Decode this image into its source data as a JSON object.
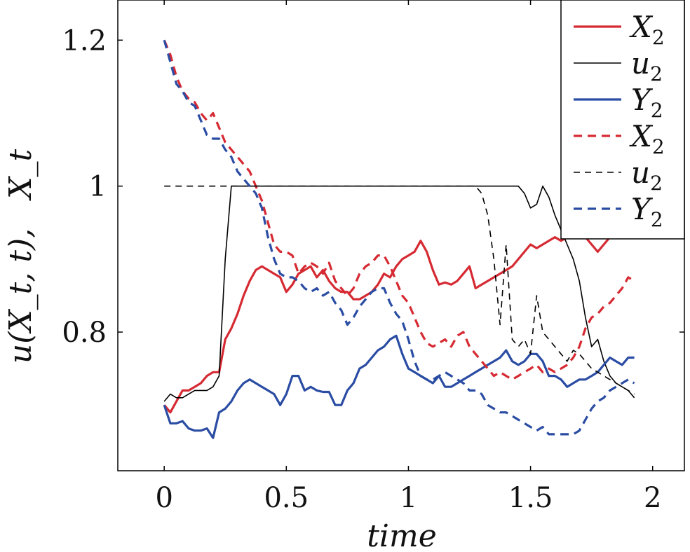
{
  "chart_data": {
    "type": "line",
    "xlabel": "time",
    "ylabel": "u(X_t, t),   X_t",
    "xlim": [
      -0.19,
      2.13
    ],
    "ylim": [
      0.61,
      1.255
    ],
    "xticks": [
      0,
      0.5,
      1,
      1.5,
      2
    ],
    "xtick_labels": [
      "0",
      "0.5",
      "1",
      "1.5",
      "2"
    ],
    "yticks": [
      0.8,
      1,
      1.2
    ],
    "ytick_labels": [
      "0.8",
      "1",
      "1.2"
    ],
    "grid": false,
    "legend_position": "top-right",
    "series": [
      {
        "name": "X_2",
        "color": "#d62a33",
        "dash": "solid",
        "width": 3.2,
        "x": [
          0,
          0.025,
          0.05,
          0.075,
          0.1,
          0.125,
          0.15,
          0.175,
          0.2,
          0.225,
          0.25,
          0.275,
          0.3,
          0.325,
          0.35,
          0.375,
          0.4,
          0.425,
          0.45,
          0.475,
          0.5,
          0.525,
          0.55,
          0.575,
          0.6,
          0.625,
          0.65,
          0.675,
          0.7,
          0.725,
          0.75,
          0.775,
          0.8,
          0.825,
          0.85,
          0.875,
          0.9,
          0.925,
          0.95,
          0.975,
          1.0,
          1.025,
          1.05,
          1.075,
          1.1,
          1.125,
          1.15,
          1.175,
          1.2,
          1.225,
          1.25,
          1.275,
          1.3,
          1.325,
          1.35,
          1.375,
          1.4,
          1.425,
          1.45,
          1.475,
          1.5,
          1.525,
          1.55,
          1.575,
          1.6,
          1.625,
          1.65,
          1.675,
          1.7,
          1.725,
          1.75,
          1.775,
          1.8,
          1.825,
          1.85,
          1.875,
          1.9,
          1.925
        ],
        "y": [
          0.7,
          0.69,
          0.705,
          0.72,
          0.72,
          0.725,
          0.73,
          0.74,
          0.745,
          0.745,
          0.79,
          0.805,
          0.825,
          0.85,
          0.87,
          0.885,
          0.89,
          0.885,
          0.88,
          0.875,
          0.855,
          0.865,
          0.88,
          0.885,
          0.89,
          0.875,
          0.885,
          0.87,
          0.86,
          0.855,
          0.855,
          0.845,
          0.845,
          0.85,
          0.855,
          0.865,
          0.88,
          0.875,
          0.89,
          0.9,
          0.905,
          0.91,
          0.925,
          0.91,
          0.885,
          0.865,
          0.868,
          0.865,
          0.87,
          0.88,
          0.89,
          0.86,
          0.865,
          0.87,
          0.875,
          0.88,
          0.885,
          0.89,
          0.9,
          0.91,
          0.92,
          0.915,
          0.92,
          0.925,
          0.93,
          0.925,
          0.93,
          0.935,
          0.94,
          0.93,
          0.92,
          0.91,
          0.92,
          0.93,
          0.935,
          0.935,
          0.93,
          0.935
        ]
      },
      {
        "name": "u_2",
        "color": "#000000",
        "dash": "solid",
        "width": 1.6,
        "x": [
          0,
          0.025,
          0.05,
          0.075,
          0.1,
          0.125,
          0.15,
          0.175,
          0.2,
          0.225,
          0.25,
          0.275,
          0.3,
          0.35,
          0.4,
          0.5,
          0.6,
          0.7,
          0.8,
          0.9,
          1.0,
          1.1,
          1.2,
          1.3,
          1.4,
          1.45,
          1.475,
          1.5,
          1.525,
          1.55,
          1.575,
          1.6,
          1.625,
          1.65,
          1.675,
          1.7,
          1.725,
          1.75,
          1.775,
          1.8,
          1.825,
          1.85,
          1.875,
          1.9,
          1.925
        ],
        "y": [
          0.705,
          0.715,
          0.71,
          0.71,
          0.715,
          0.72,
          0.72,
          0.72,
          0.725,
          0.74,
          0.9,
          1.0,
          1.0,
          1.0,
          1.0,
          1.0,
          1.0,
          1.0,
          1.0,
          1.0,
          1.0,
          1.0,
          1.0,
          1.0,
          1.0,
          1.0,
          0.99,
          0.97,
          0.975,
          1.0,
          0.985,
          0.96,
          0.94,
          0.92,
          0.9,
          0.87,
          0.82,
          0.78,
          0.79,
          0.76,
          0.74,
          0.73,
          0.725,
          0.72,
          0.71
        ]
      },
      {
        "name": "Y_2",
        "color": "#2a4ca3",
        "dash": "solid",
        "width": 3.2,
        "x": [
          0,
          0.025,
          0.05,
          0.075,
          0.1,
          0.125,
          0.15,
          0.175,
          0.2,
          0.225,
          0.25,
          0.275,
          0.3,
          0.325,
          0.35,
          0.375,
          0.4,
          0.425,
          0.45,
          0.475,
          0.5,
          0.525,
          0.55,
          0.575,
          0.6,
          0.625,
          0.65,
          0.675,
          0.7,
          0.725,
          0.75,
          0.775,
          0.8,
          0.825,
          0.85,
          0.875,
          0.9,
          0.925,
          0.95,
          0.975,
          1.0,
          1.025,
          1.05,
          1.075,
          1.1,
          1.125,
          1.15,
          1.175,
          1.2,
          1.225,
          1.25,
          1.275,
          1.3,
          1.325,
          1.35,
          1.375,
          1.4,
          1.425,
          1.45,
          1.475,
          1.5,
          1.525,
          1.55,
          1.575,
          1.6,
          1.625,
          1.65,
          1.675,
          1.7,
          1.725,
          1.75,
          1.775,
          1.8,
          1.825,
          1.85,
          1.875,
          1.9,
          1.925
        ],
        "y": [
          0.7,
          0.675,
          0.675,
          0.678,
          0.668,
          0.665,
          0.665,
          0.668,
          0.655,
          0.69,
          0.695,
          0.705,
          0.72,
          0.73,
          0.735,
          0.73,
          0.725,
          0.72,
          0.715,
          0.7,
          0.715,
          0.74,
          0.74,
          0.72,
          0.725,
          0.72,
          0.718,
          0.718,
          0.7,
          0.7,
          0.72,
          0.73,
          0.75,
          0.755,
          0.765,
          0.775,
          0.78,
          0.79,
          0.795,
          0.77,
          0.75,
          0.745,
          0.74,
          0.735,
          0.73,
          0.74,
          0.725,
          0.725,
          0.73,
          0.735,
          0.74,
          0.745,
          0.75,
          0.755,
          0.76,
          0.765,
          0.775,
          0.76,
          0.755,
          0.76,
          0.77,
          0.77,
          0.76,
          0.74,
          0.74,
          0.735,
          0.725,
          0.73,
          0.735,
          0.735,
          0.74,
          0.745,
          0.755,
          0.765,
          0.76,
          0.755,
          0.765,
          0.765
        ]
      },
      {
        "name": "X_2",
        "color": "#d62a33",
        "dash": "dashed",
        "width": 3.2,
        "x": [
          0,
          0.025,
          0.05,
          0.075,
          0.1,
          0.125,
          0.15,
          0.175,
          0.2,
          0.225,
          0.25,
          0.275,
          0.3,
          0.325,
          0.35,
          0.375,
          0.4,
          0.425,
          0.45,
          0.475,
          0.5,
          0.525,
          0.55,
          0.575,
          0.6,
          0.625,
          0.65,
          0.675,
          0.7,
          0.725,
          0.75,
          0.775,
          0.8,
          0.825,
          0.85,
          0.875,
          0.9,
          0.925,
          0.95,
          0.975,
          1.0,
          1.025,
          1.05,
          1.075,
          1.1,
          1.125,
          1.15,
          1.175,
          1.2,
          1.225,
          1.25,
          1.275,
          1.3,
          1.325,
          1.35,
          1.375,
          1.4,
          1.425,
          1.45,
          1.475,
          1.5,
          1.525,
          1.55,
          1.575,
          1.6,
          1.625,
          1.65,
          1.675,
          1.7,
          1.725,
          1.75,
          1.775,
          1.8,
          1.825,
          1.85,
          1.875,
          1.9,
          1.925
        ],
        "y": [
          1.2,
          1.18,
          1.15,
          1.13,
          1.12,
          1.115,
          1.1,
          1.09,
          1.1,
          1.08,
          1.06,
          1.05,
          1.04,
          1.03,
          1.02,
          1.0,
          0.98,
          0.95,
          0.92,
          0.91,
          0.91,
          0.905,
          0.88,
          0.89,
          0.895,
          0.89,
          0.88,
          0.895,
          0.87,
          0.86,
          0.85,
          0.86,
          0.88,
          0.89,
          0.895,
          0.905,
          0.905,
          0.89,
          0.87,
          0.85,
          0.84,
          0.82,
          0.8,
          0.785,
          0.78,
          0.785,
          0.79,
          0.78,
          0.795,
          0.8,
          0.78,
          0.77,
          0.76,
          0.75,
          0.74,
          0.745,
          0.74,
          0.735,
          0.74,
          0.745,
          0.75,
          0.755,
          0.745,
          0.75,
          0.745,
          0.75,
          0.755,
          0.765,
          0.78,
          0.805,
          0.82,
          0.825,
          0.835,
          0.84,
          0.85,
          0.86,
          0.875,
          0.87
        ]
      },
      {
        "name": "u_2",
        "color": "#000000",
        "dash": "dashed",
        "width": 1.6,
        "x": [
          0,
          0.1,
          0.2,
          0.3,
          0.4,
          0.5,
          0.6,
          0.7,
          0.8,
          0.9,
          1.0,
          1.1,
          1.2,
          1.275,
          1.3,
          1.325,
          1.35,
          1.375,
          1.4,
          1.425,
          1.45,
          1.475,
          1.5,
          1.525,
          1.55,
          1.575,
          1.6,
          1.625,
          1.65,
          1.675,
          1.7,
          1.725,
          1.75,
          1.775,
          1.8,
          1.825,
          1.85,
          1.875,
          1.9,
          1.925
        ],
        "y": [
          1.0,
          1.0,
          1.0,
          1.0,
          1.0,
          1.0,
          1.0,
          1.0,
          1.0,
          1.0,
          1.0,
          1.0,
          1.0,
          1.0,
          0.99,
          0.96,
          0.9,
          0.81,
          0.92,
          0.79,
          0.78,
          0.79,
          0.77,
          0.85,
          0.8,
          0.79,
          0.78,
          0.77,
          0.76,
          0.775,
          0.77,
          0.76,
          0.75,
          0.745,
          0.74,
          0.735,
          0.73,
          0.725,
          0.72,
          0.715
        ]
      },
      {
        "name": "Y_2",
        "color": "#2a4ca3",
        "dash": "dashed",
        "width": 3.2,
        "x": [
          0,
          0.025,
          0.05,
          0.075,
          0.1,
          0.125,
          0.15,
          0.175,
          0.2,
          0.225,
          0.25,
          0.275,
          0.3,
          0.325,
          0.35,
          0.375,
          0.4,
          0.425,
          0.45,
          0.475,
          0.5,
          0.525,
          0.55,
          0.575,
          0.6,
          0.625,
          0.65,
          0.675,
          0.7,
          0.725,
          0.75,
          0.775,
          0.8,
          0.825,
          0.85,
          0.875,
          0.9,
          0.925,
          0.95,
          0.975,
          1.0,
          1.025,
          1.05,
          1.075,
          1.1,
          1.125,
          1.15,
          1.175,
          1.2,
          1.225,
          1.25,
          1.275,
          1.3,
          1.325,
          1.35,
          1.375,
          1.4,
          1.425,
          1.45,
          1.475,
          1.5,
          1.525,
          1.55,
          1.575,
          1.6,
          1.625,
          1.65,
          1.675,
          1.7,
          1.725,
          1.75,
          1.775,
          1.8,
          1.825,
          1.85,
          1.875,
          1.9,
          1.925
        ],
        "y": [
          1.2,
          1.17,
          1.14,
          1.13,
          1.115,
          1.11,
          1.09,
          1.07,
          1.065,
          1.065,
          1.05,
          1.04,
          1.02,
          1.01,
          1.0,
          0.99,
          0.97,
          0.93,
          0.9,
          0.88,
          0.875,
          0.875,
          0.87,
          0.86,
          0.855,
          0.86,
          0.85,
          0.855,
          0.84,
          0.83,
          0.81,
          0.82,
          0.835,
          0.845,
          0.855,
          0.86,
          0.86,
          0.84,
          0.825,
          0.815,
          0.79,
          0.76,
          0.74,
          0.735,
          0.735,
          0.74,
          0.745,
          0.74,
          0.735,
          0.73,
          0.72,
          0.72,
          0.715,
          0.7,
          0.695,
          0.69,
          0.69,
          0.685,
          0.68,
          0.675,
          0.67,
          0.665,
          0.67,
          0.66,
          0.66,
          0.66,
          0.66,
          0.66,
          0.665,
          0.68,
          0.695,
          0.705,
          0.71,
          0.72,
          0.725,
          0.73,
          0.735,
          0.73
        ]
      }
    ]
  }
}
